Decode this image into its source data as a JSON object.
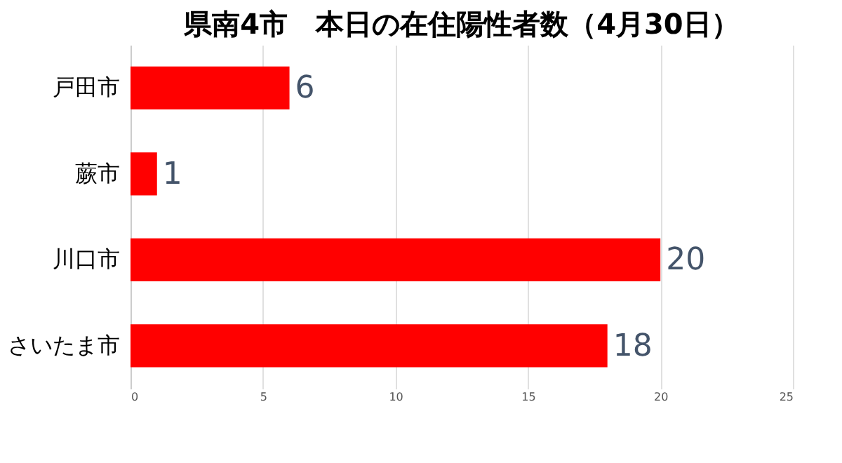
{
  "chart_data": {
    "type": "bar",
    "orientation": "horizontal",
    "title": "県南4市　本日の在住陽性者数（4月30日）",
    "categories": [
      "戸田市",
      "蕨市",
      "川口市",
      "さいたま市"
    ],
    "values": [
      6,
      1,
      20,
      18
    ],
    "color": "#ff0000",
    "xlim": [
      0,
      25
    ],
    "xticks": [
      0,
      5,
      10,
      15,
      20,
      25
    ],
    "grid": "x",
    "data_labels": true
  }
}
